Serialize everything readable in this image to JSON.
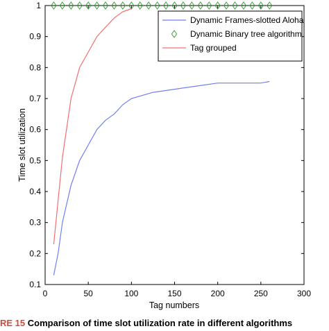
{
  "chart_data": {
    "type": "line",
    "xlabel": "Tag numbers",
    "ylabel": "Time slot utilization",
    "xlim": [
      0,
      300
    ],
    "ylim": [
      0.1,
      1.0
    ],
    "xticks": [
      0,
      50,
      100,
      150,
      200,
      250,
      300
    ],
    "yticks": [
      0.1,
      0.2,
      0.3,
      0.4,
      0.5,
      0.6,
      0.7,
      0.8,
      0.9,
      1.0
    ],
    "grid": false,
    "legend_position": "top-right",
    "series": [
      {
        "name": "Dynamic Frames-slotted Aloha",
        "color": "#6f7ff0",
        "marker": "none",
        "x": [
          10,
          15,
          20,
          25,
          30,
          40,
          50,
          60,
          70,
          80,
          90,
          100,
          125,
          150,
          175,
          200,
          225,
          250,
          260
        ],
        "y": [
          0.13,
          0.2,
          0.3,
          0.36,
          0.42,
          0.5,
          0.55,
          0.6,
          0.63,
          0.65,
          0.68,
          0.7,
          0.72,
          0.73,
          0.74,
          0.75,
          0.75,
          0.75,
          0.755
        ]
      },
      {
        "name": "Dynamic Binary tree algorithm",
        "color": "#3aa03a",
        "marker": "diamond",
        "x": [
          10,
          20,
          30,
          40,
          50,
          60,
          70,
          80,
          90,
          100,
          110,
          120,
          130,
          140,
          150,
          160,
          170,
          180,
          190,
          200,
          210,
          220,
          230,
          240,
          250,
          260
        ],
        "y": [
          1,
          1,
          1,
          1,
          1,
          1,
          1,
          1,
          1,
          1,
          1,
          1,
          1,
          1,
          1,
          1,
          1,
          1,
          1,
          1,
          1,
          1,
          1,
          1,
          1,
          1
        ]
      },
      {
        "name": "Tag grouped",
        "color": "#f07070",
        "marker": "none",
        "x": [
          10,
          20,
          30,
          40,
          50,
          60,
          70,
          80,
          90,
          100
        ],
        "y": [
          0.23,
          0.51,
          0.7,
          0.8,
          0.85,
          0.9,
          0.93,
          0.96,
          0.98,
          0.99
        ]
      }
    ]
  },
  "caption": {
    "number": "RE 15",
    "text": "Comparison of time slot utilization rate in different algorithms"
  }
}
